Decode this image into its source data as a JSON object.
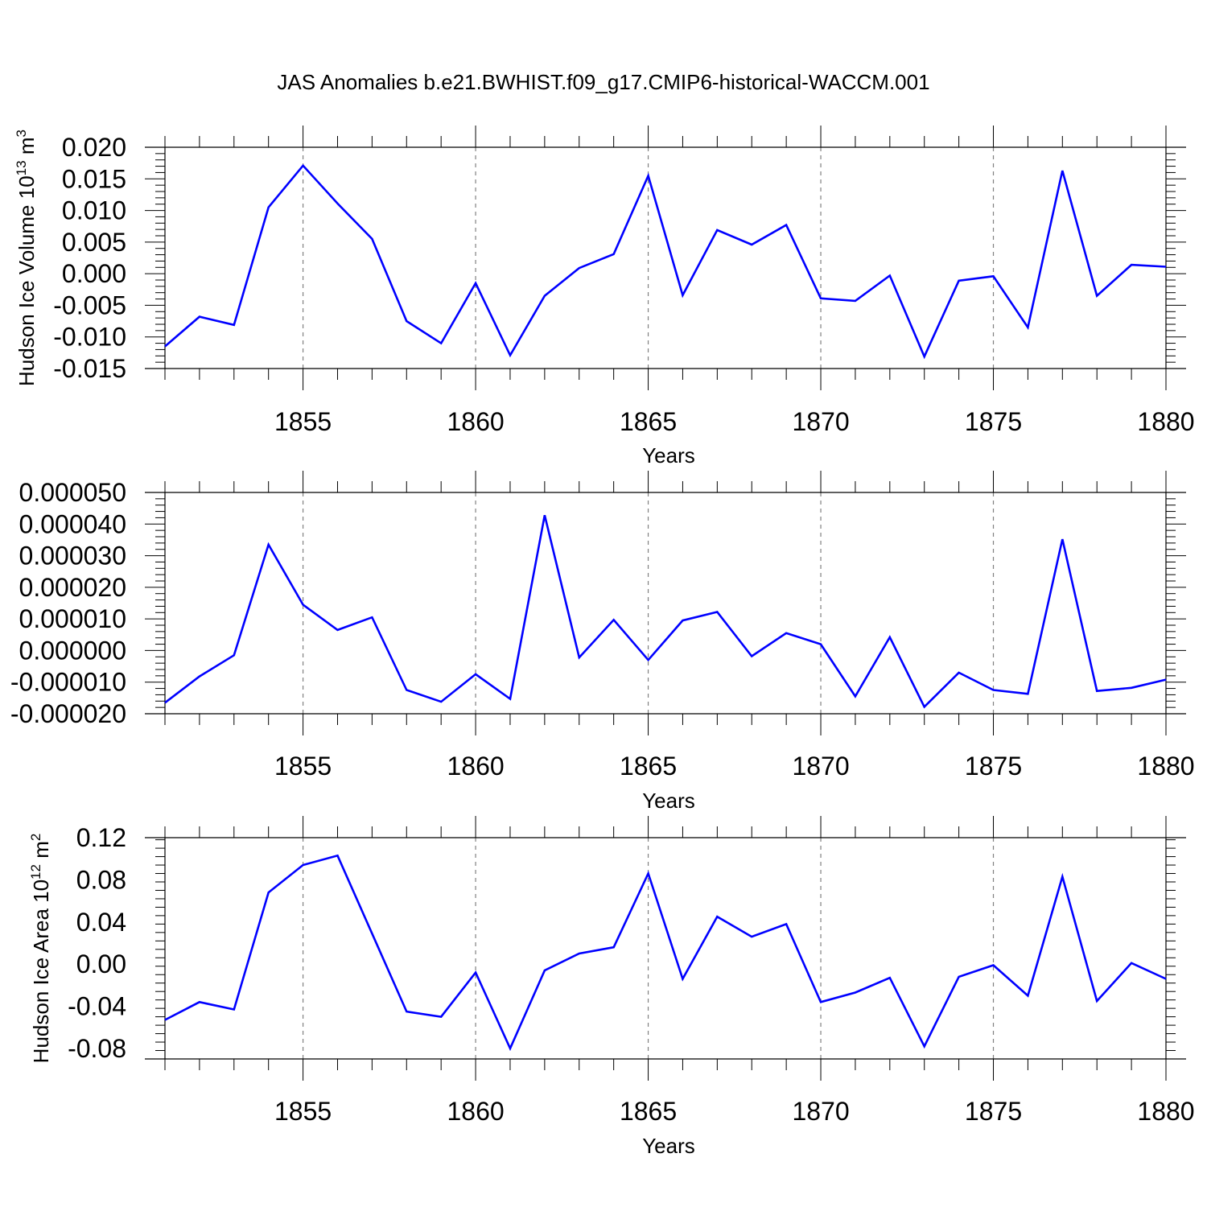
{
  "title": "JAS Anomalies b.e21.BWHIST.f09_g17.CMIP6-historical-WACCM.001",
  "colors": {
    "line": "#0000ff",
    "axis": "#000000",
    "grid": "#808080"
  },
  "chart_data": [
    {
      "type": "line",
      "title": "JAS Anomalies b.e21.BWHIST.f09_g17.CMIP6-historical-WACCM.001",
      "xlabel": "Years",
      "ylabel": "Hudson Ice Volume 10",
      "ylabel_exponent": "13",
      "ylabel_unit": "m",
      "ylabel_unit_exponent": "3",
      "xlim": [
        1851,
        1880
      ],
      "ylim": [
        -0.015,
        0.02
      ],
      "yticks": [
        -0.015,
        -0.01,
        -0.005,
        0.0,
        0.005,
        0.01,
        0.015,
        0.02
      ],
      "ytick_labels": [
        "-0.015",
        "-0.010",
        "-0.005",
        "0.000",
        "0.005",
        "0.010",
        "0.015",
        "0.020"
      ],
      "xticks": [
        1855,
        1860,
        1865,
        1870,
        1875,
        1880
      ],
      "xtick_labels": [
        "1855",
        "1860",
        "1865",
        "1870",
        "1875",
        "1880"
      ],
      "grid": "vertical-dashed-at-major-x",
      "x": [
        1851,
        1852,
        1853,
        1854,
        1855,
        1856,
        1857,
        1858,
        1859,
        1860,
        1861,
        1862,
        1863,
        1864,
        1865,
        1866,
        1867,
        1868,
        1869,
        1870,
        1871,
        1872,
        1873,
        1874,
        1875,
        1876,
        1877,
        1878,
        1879,
        1880
      ],
      "series": [
        {
          "name": "Hudson Ice Volume anomaly",
          "values": [
            -0.0115,
            -0.0068,
            -0.0081,
            0.0105,
            0.0171,
            0.0111,
            0.0055,
            -0.0075,
            -0.011,
            -0.0015,
            -0.0129,
            -0.0035,
            0.0009,
            0.0031,
            0.0155,
            -0.0034,
            0.0069,
            0.0046,
            0.0077,
            -0.0039,
            -0.0043,
            -0.0003,
            -0.0131,
            -0.0011,
            -0.0004,
            -0.0085,
            0.0163,
            -0.0035,
            0.0014,
            0.0011
          ]
        }
      ]
    },
    {
      "type": "line",
      "xlabel": "Years",
      "ylabel": "",
      "xlim": [
        1851,
        1880
      ],
      "ylim": [
        -2e-05,
        5e-05
      ],
      "yticks": [
        -2e-05,
        -1e-05,
        0,
        1e-05,
        2e-05,
        3e-05,
        4e-05,
        5e-05
      ],
      "ytick_labels": [
        "-0.000020",
        "-0.000010",
        "0.000000",
        "0.000010",
        "0.000020",
        "0.000030",
        "0.000040",
        "0.000050"
      ],
      "xticks": [
        1855,
        1860,
        1865,
        1870,
        1875,
        1880
      ],
      "xtick_labels": [
        "1855",
        "1860",
        "1865",
        "1870",
        "1875",
        "1880"
      ],
      "grid": "vertical-dashed-at-major-x",
      "x": [
        1851,
        1852,
        1853,
        1854,
        1855,
        1856,
        1857,
        1858,
        1859,
        1860,
        1861,
        1862,
        1863,
        1864,
        1865,
        1866,
        1867,
        1868,
        1869,
        1870,
        1871,
        1872,
        1873,
        1874,
        1875,
        1876,
        1877,
        1878,
        1879,
        1880
      ],
      "series": [
        {
          "name": "anomaly",
          "values": [
            -1.65e-05,
            -8.2e-06,
            -1.5e-06,
            3.35e-05,
            1.45e-05,
            6.5e-06,
            1.05e-05,
            -1.25e-05,
            -1.62e-05,
            -7.5e-06,
            -1.53e-05,
            4.28e-05,
            -2.2e-06,
            9.7e-06,
            -3e-06,
            9.5e-06,
            1.22e-05,
            -1.8e-06,
            5.5e-06,
            2e-06,
            -1.45e-05,
            4.2e-06,
            -1.78e-05,
            -7e-06,
            -1.25e-05,
            -1.37e-05,
            3.52e-05,
            -1.28e-05,
            -1.18e-05,
            -9.2e-06
          ]
        }
      ]
    },
    {
      "type": "line",
      "xlabel": "Years",
      "ylabel": "Hudson Ice Area 10",
      "ylabel_exponent": "12",
      "ylabel_unit": "m",
      "ylabel_unit_exponent": "2",
      "xlim": [
        1851,
        1880
      ],
      "ylim": [
        -0.09,
        0.12
      ],
      "yticks": [
        -0.08,
        -0.04,
        0.0,
        0.04,
        0.08,
        0.12
      ],
      "ytick_labels": [
        "-0.08",
        "-0.04",
        "0.00",
        "0.04",
        "0.08",
        "0.12"
      ],
      "xticks": [
        1855,
        1860,
        1865,
        1870,
        1875,
        1880
      ],
      "xtick_labels": [
        "1855",
        "1860",
        "1865",
        "1870",
        "1875",
        "1880"
      ],
      "grid": "vertical-dashed-at-major-x",
      "x": [
        1851,
        1852,
        1853,
        1854,
        1855,
        1856,
        1857,
        1858,
        1859,
        1860,
        1861,
        1862,
        1863,
        1864,
        1865,
        1866,
        1867,
        1868,
        1869,
        1870,
        1871,
        1872,
        1873,
        1874,
        1875,
        1876,
        1877,
        1878,
        1879,
        1880
      ],
      "series": [
        {
          "name": "Hudson Ice Area anomaly",
          "values": [
            -0.053,
            -0.036,
            -0.043,
            0.068,
            0.094,
            0.103,
            0.029,
            -0.045,
            -0.05,
            -0.008,
            -0.08,
            -0.006,
            0.01,
            0.016,
            0.086,
            -0.014,
            0.045,
            0.026,
            0.038,
            -0.036,
            -0.027,
            -0.013,
            -0.078,
            -0.012,
            -0.001,
            -0.03,
            0.083,
            -0.035,
            0.001,
            -0.014
          ]
        }
      ]
    }
  ]
}
